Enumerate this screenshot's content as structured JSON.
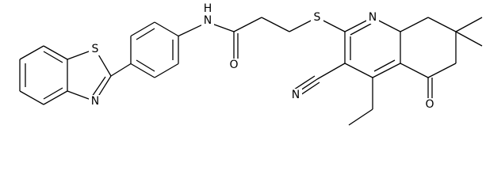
{
  "nodes": [
    {
      "label": "S"
    },
    {
      "label": "N"
    },
    {
      "label": "N"
    },
    {
      "label": "H"
    },
    {
      "label": "O"
    },
    {
      "label": "S"
    },
    {
      "label": "N"
    },
    {
      "label": "N"
    },
    {
      "label": "O"
    }
  ]
}
